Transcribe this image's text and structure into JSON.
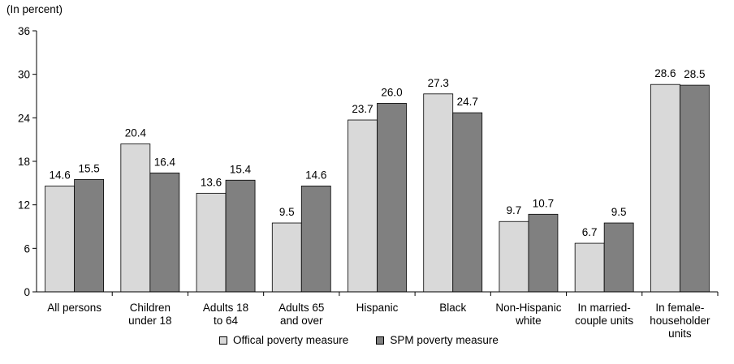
{
  "chart_data": {
    "type": "bar",
    "unit_label": "(In percent)",
    "categories": [
      [
        "All persons"
      ],
      [
        "Children",
        "under 18"
      ],
      [
        "Adults 18",
        "to 64"
      ],
      [
        "Adults 65",
        "and over"
      ],
      [
        "Hispanic"
      ],
      [
        "Black"
      ],
      [
        "Non-Hispanic",
        "white"
      ],
      [
        "In married-",
        "couple units"
      ],
      [
        "In female-",
        "householder",
        "units"
      ]
    ],
    "series": [
      {
        "name": "Offical poverty measure",
        "color": "#d9d9d9",
        "values": [
          14.6,
          20.4,
          13.6,
          9.5,
          23.7,
          27.3,
          9.7,
          6.7,
          28.6
        ]
      },
      {
        "name": "SPM poverty measure",
        "color": "#808080",
        "values": [
          15.5,
          16.4,
          15.4,
          14.6,
          26.0,
          24.7,
          10.7,
          9.5,
          28.5
        ]
      }
    ],
    "ylim": [
      0,
      36
    ],
    "yticks": [
      0,
      6,
      12,
      18,
      24,
      30,
      36
    ],
    "grid": false,
    "legend_position": "bottom"
  }
}
